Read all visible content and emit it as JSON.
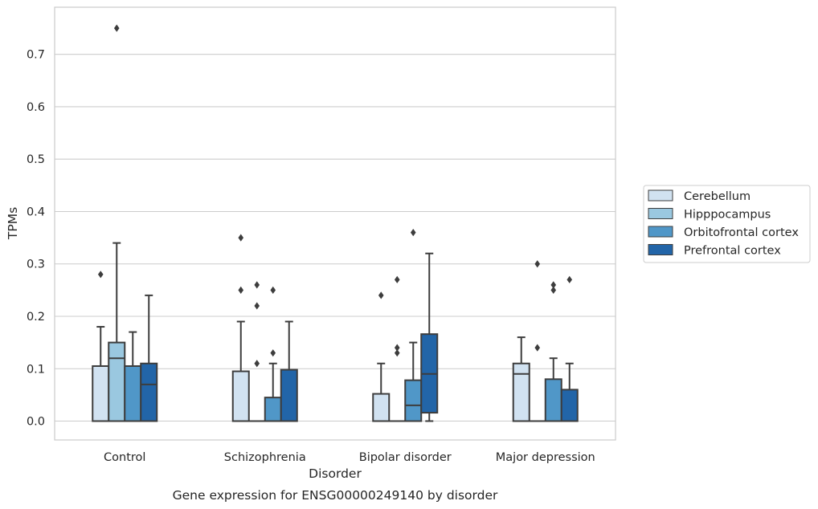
{
  "caption": "Gene expression for ENSG00000249140 by disorder",
  "chart_data": {
    "type": "box",
    "xlabel": "Disorder",
    "ylabel": "TPMs",
    "ylim": [
      -0.036,
      0.79
    ],
    "yticks": [
      0.0,
      0.1,
      0.2,
      0.3,
      0.4,
      0.5,
      0.6,
      0.7
    ],
    "ytick_labels": [
      "0.0",
      "0.1",
      "0.2",
      "0.3",
      "0.4",
      "0.5",
      "0.6",
      "0.7"
    ],
    "grid": "horizontal",
    "legend_position": "right",
    "categories": [
      "Control",
      "Schizophrenia",
      "Bipolar disorder",
      "Major depression"
    ],
    "series": [
      {
        "name": "Cerebellum",
        "color": "#d1e2f1",
        "boxes": [
          {
            "q1": 0,
            "median": 0,
            "q3": 0.105,
            "whislo": 0,
            "whishi": 0.18,
            "fliers": [
              0.28
            ]
          },
          {
            "q1": 0,
            "median": 0,
            "q3": 0.095,
            "whislo": 0,
            "whishi": 0.19,
            "fliers": [
              0.25,
              0.35
            ]
          },
          {
            "q1": 0,
            "median": 0,
            "q3": 0.052,
            "whislo": 0,
            "whishi": 0.11,
            "fliers": [
              0.24
            ]
          },
          {
            "q1": 0,
            "median": 0.09,
            "q3": 0.11,
            "whislo": 0,
            "whishi": 0.16,
            "fliers": []
          }
        ]
      },
      {
        "name": "Hipppocampus",
        "color": "#9ac8e0",
        "boxes": [
          {
            "q1": 0,
            "median": 0.12,
            "q3": 0.15,
            "whislo": 0,
            "whishi": 0.34,
            "fliers": [
              0.75
            ]
          },
          {
            "q1": 0,
            "median": 0,
            "q3": 0,
            "whislo": 0,
            "whishi": 0,
            "fliers": [
              0.11,
              0.22,
              0.26
            ]
          },
          {
            "q1": 0,
            "median": 0,
            "q3": 0,
            "whislo": 0,
            "whishi": 0,
            "fliers": [
              0.13,
              0.14,
              0.27
            ]
          },
          {
            "q1": 0,
            "median": 0,
            "q3": 0,
            "whislo": 0,
            "whishi": 0,
            "fliers": [
              0.14,
              0.3
            ]
          }
        ]
      },
      {
        "name": "Orbitofrontal cortex",
        "color": "#5097c8",
        "boxes": [
          {
            "q1": 0,
            "median": 0,
            "q3": 0.105,
            "whislo": 0,
            "whishi": 0.17,
            "fliers": []
          },
          {
            "q1": 0,
            "median": 0,
            "q3": 0.045,
            "whislo": 0,
            "whishi": 0.11,
            "fliers": [
              0.13,
              0.25
            ]
          },
          {
            "q1": 0,
            "median": 0.03,
            "q3": 0.078,
            "whislo": 0,
            "whishi": 0.15,
            "fliers": [
              0.36
            ]
          },
          {
            "q1": 0,
            "median": 0,
            "q3": 0.08,
            "whislo": 0,
            "whishi": 0.12,
            "fliers": [
              0.25,
              0.26
            ]
          }
        ]
      },
      {
        "name": "Prefrontal cortex",
        "color": "#2265a8",
        "boxes": [
          {
            "q1": 0,
            "median": 0.07,
            "q3": 0.11,
            "whislo": 0,
            "whishi": 0.24,
            "fliers": []
          },
          {
            "q1": 0,
            "median": 0,
            "q3": 0.098,
            "whislo": 0,
            "whishi": 0.19,
            "fliers": []
          },
          {
            "q1": 0.016,
            "median": 0.09,
            "q3": 0.166,
            "whislo": 0,
            "whishi": 0.32,
            "fliers": []
          },
          {
            "q1": 0,
            "median": 0,
            "q3": 0.06,
            "whislo": 0,
            "whishi": 0.11,
            "fliers": [
              0.27
            ]
          }
        ]
      }
    ]
  }
}
